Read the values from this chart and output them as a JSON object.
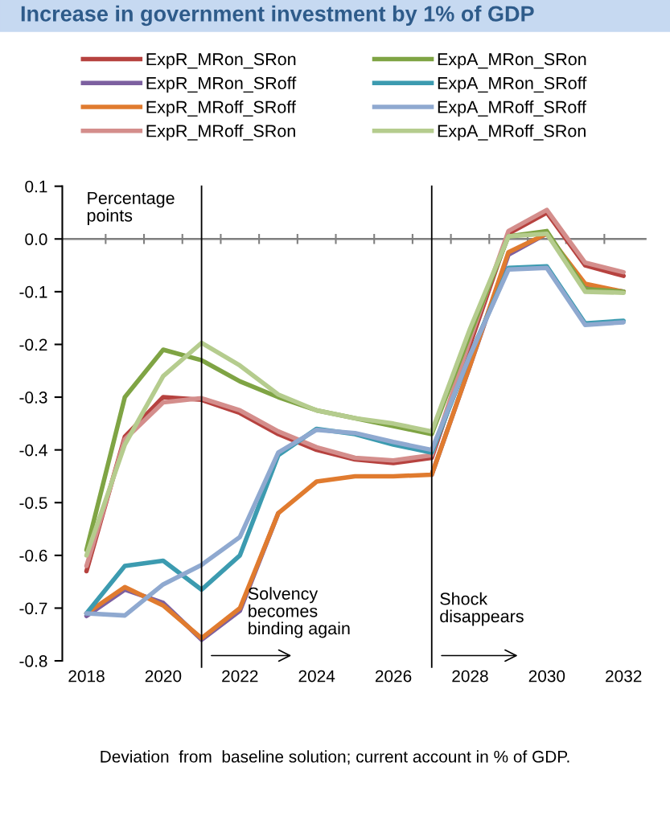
{
  "chart_data": {
    "type": "line",
    "title": "Increase in government investment by 1% of GDP",
    "categories": [
      "2018",
      null,
      "2020",
      null,
      "2022",
      null,
      "2024",
      null,
      "2026",
      null,
      "2028",
      null,
      "2030",
      null,
      "2032"
    ],
    "series": [
      {
        "name": "ExpR_MRon_SRon",
        "color": "#b6423f",
        "values": [
          -0.63,
          -0.375,
          -0.3,
          -0.305,
          -0.33,
          -0.37,
          -0.4,
          -0.418,
          -0.425,
          -0.415,
          -0.2,
          0.01,
          0.05,
          -0.05,
          -0.07
        ]
      },
      {
        "name": "ExpR_MRon_SRoff",
        "color": "#7d60a0",
        "values": [
          -0.715,
          -0.665,
          -0.69,
          -0.76,
          -0.705,
          -0.52,
          null,
          null,
          null,
          -0.447,
          -0.24,
          -0.03,
          0.01,
          -0.09,
          -0.1
        ]
      },
      {
        "name": "ExpR_MRoff_SRoff",
        "color": "#e07b2f",
        "values": [
          -0.71,
          -0.66,
          -0.695,
          -0.757,
          -0.7,
          -0.52,
          -0.46,
          -0.45,
          -0.45,
          -0.447,
          -0.24,
          -0.025,
          0.01,
          -0.085,
          -0.1
        ]
      },
      {
        "name": "ExpR_MRoff_SRon",
        "color": "#d48e8c",
        "values": [
          -0.62,
          -0.38,
          -0.31,
          -0.302,
          -0.325,
          -0.365,
          -0.395,
          -0.415,
          -0.42,
          -0.41,
          -0.19,
          0.015,
          0.055,
          -0.045,
          -0.063
        ]
      },
      {
        "name": "ExpA_MRon_SRon",
        "color": "#7fa444",
        "values": [
          -0.59,
          -0.3,
          -0.21,
          -0.23,
          -0.27,
          -0.3,
          -0.325,
          -0.34,
          -0.355,
          -0.37,
          -0.18,
          0.005,
          0.015,
          -0.095,
          -0.1
        ]
      },
      {
        "name": "ExpA_MRon_SRoff",
        "color": "#3c9bb0",
        "values": [
          -0.71,
          -0.62,
          -0.61,
          -0.665,
          -0.6,
          -0.41,
          -0.36,
          -0.37,
          -0.39,
          -0.405,
          -0.22,
          -0.055,
          -0.052,
          -0.16,
          -0.155
        ]
      },
      {
        "name": "ExpA_MRoff_SRoff",
        "color": "#8fa9d0",
        "values": [
          -0.71,
          -0.714,
          -0.655,
          -0.618,
          -0.565,
          -0.405,
          -0.362,
          -0.368,
          -0.385,
          -0.4,
          -0.22,
          -0.058,
          -0.055,
          -0.163,
          -0.158
        ]
      },
      {
        "name": "ExpA_MRoff_SRon",
        "color": "#b5cc8e",
        "values": [
          -0.6,
          -0.39,
          -0.26,
          -0.197,
          -0.24,
          -0.295,
          -0.325,
          -0.34,
          -0.35,
          -0.365,
          -0.17,
          0.005,
          0.01,
          -0.1,
          -0.102
        ]
      }
    ],
    "ylim": [
      -0.8,
      0.1
    ],
    "yticks": [
      {
        "value": 0.1,
        "label": "0.1"
      },
      {
        "value": 0.0,
        "label": "0.0"
      },
      {
        "value": -0.1,
        "label": "-0.1"
      },
      {
        "value": -0.2,
        "label": "-0.2"
      },
      {
        "value": -0.3,
        "label": "-0.3"
      },
      {
        "value": -0.4,
        "label": "-0.4"
      },
      {
        "value": -0.5,
        "label": "-0.5"
      },
      {
        "value": -0.6,
        "label": "-0.6"
      },
      {
        "value": -0.7,
        "label": "-0.7"
      },
      {
        "value": -0.8,
        "label": "-0.8"
      }
    ],
    "ref_lines": [
      {
        "axis": "y",
        "value": 0,
        "color": "#808080"
      }
    ],
    "annotations": [
      "Percentage points",
      "Solvency becomes binding again",
      "Shock disappears",
      "Deviation  from  baseline solution; current account in % of GDP."
    ],
    "legend": "top",
    "marker": "none",
    "line_style": "solid"
  }
}
